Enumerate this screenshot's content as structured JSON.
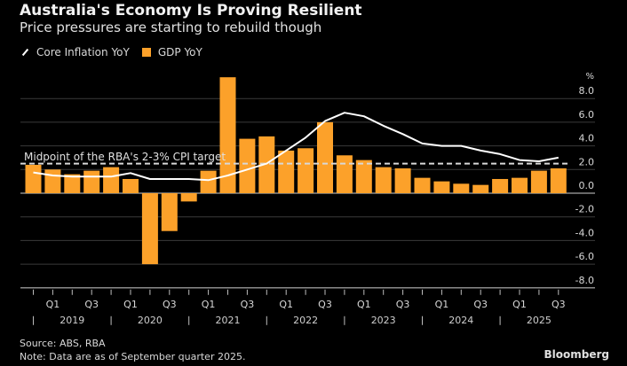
{
  "header": {
    "title": "Australia's Economy Is Proving Resilient",
    "subtitle": "Price pressures are starting to rebuild though"
  },
  "legend": {
    "items": [
      {
        "label": "Core Inflation YoY",
        "icon": "line-icon",
        "color": "#ffffff"
      },
      {
        "label": "GDP YoY",
        "icon": "square-icon",
        "color": "#fca12a"
      }
    ]
  },
  "footer": {
    "source": "Source: ABS, RBA",
    "note": "Note: Data are as of September quarter 2025.",
    "brand": "Bloomberg"
  },
  "chart_data": {
    "type": "bar",
    "title": "Australia's Economy Is Proving Resilient",
    "subtitle": "Price pressures are starting to rebuild though",
    "xlabel": "",
    "ylabel": "%",
    "ylim": [
      -8,
      8
    ],
    "yticks": [
      8,
      6,
      4,
      2,
      0,
      -2,
      -4,
      -6,
      -8
    ],
    "ytick_labels": [
      "8.0",
      "6.0",
      "4.0",
      "2.0",
      "0.0",
      "-2.0",
      "-4.0",
      "-6.0",
      "-8.0"
    ],
    "grid": true,
    "legend_position": "top-left",
    "categories": [
      "Q4 2018",
      "Q1 2019",
      "Q2 2019",
      "Q3 2019",
      "Q4 2019",
      "Q1 2020",
      "Q2 2020",
      "Q3 2020",
      "Q4 2020",
      "Q1 2021",
      "Q2 2021",
      "Q3 2021",
      "Q4 2021",
      "Q1 2022",
      "Q2 2022",
      "Q3 2022",
      "Q4 2022",
      "Q1 2023",
      "Q2 2023",
      "Q3 2023",
      "Q4 2023",
      "Q1 2024",
      "Q2 2024",
      "Q3 2024",
      "Q4 2024",
      "Q1 2025",
      "Q2 2025",
      "Q3 2025"
    ],
    "quarter_labels": [
      "",
      "Q1",
      "",
      "Q3",
      "",
      "Q1",
      "",
      "Q3",
      "",
      "Q1",
      "",
      "Q3",
      "",
      "Q1",
      "",
      "Q3",
      "",
      "Q1",
      "",
      "Q3",
      "",
      "Q1",
      "",
      "Q3",
      "",
      "Q1",
      "",
      "Q3"
    ],
    "year_labels": [
      "2019",
      "2020",
      "2021",
      "2022",
      "2023",
      "2024",
      "2025"
    ],
    "series": [
      {
        "name": "GDP YoY",
        "type": "bar",
        "color": "#fca12a",
        "values": [
          2.4,
          2.0,
          1.6,
          1.9,
          2.2,
          1.2,
          -6.0,
          -3.2,
          -0.7,
          1.9,
          9.8,
          4.6,
          4.8,
          3.6,
          3.8,
          6.0,
          3.2,
          2.8,
          2.2,
          2.1,
          1.3,
          1.0,
          0.8,
          0.7,
          1.2,
          1.3,
          1.9,
          2.1
        ]
      },
      {
        "name": "Core Inflation YoY",
        "type": "line",
        "color": "#ffffff",
        "values": [
          1.75,
          1.5,
          1.4,
          1.4,
          1.4,
          1.7,
          1.2,
          1.2,
          1.2,
          1.1,
          1.5,
          2.0,
          2.5,
          3.6,
          4.7,
          6.1,
          6.8,
          6.5,
          5.7,
          5.0,
          4.2,
          4.0,
          4.0,
          3.6,
          3.3,
          2.8,
          2.7,
          3.0
        ]
      }
    ],
    "annotations": [
      {
        "text": "Midpoint of the RBA's 2-3% CPI target",
        "value": 2.5,
        "style": "dashed"
      }
    ]
  }
}
